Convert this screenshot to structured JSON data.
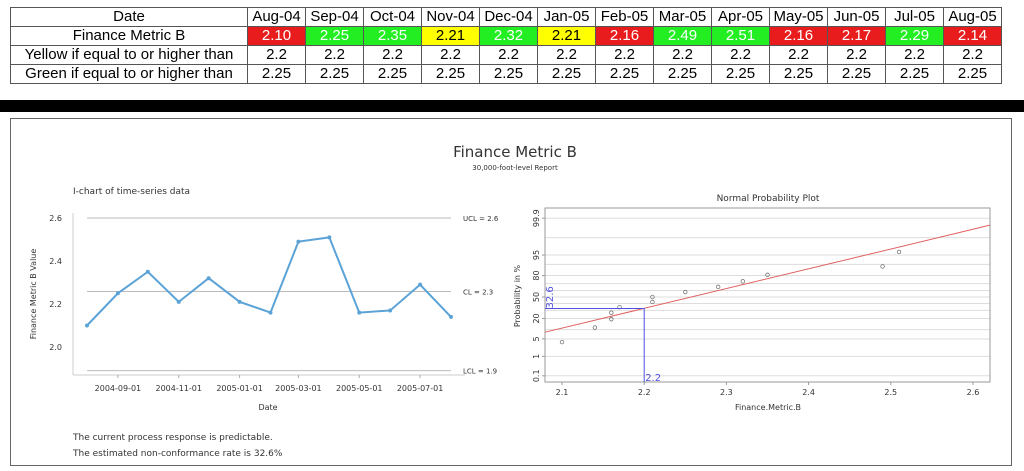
{
  "table": {
    "header_label": "Date",
    "months": [
      "Aug-04",
      "Sep-04",
      "Oct-04",
      "Nov-04",
      "Dec-04",
      "Jan-05",
      "Feb-05",
      "Mar-05",
      "Apr-05",
      "May-05",
      "Jun-05",
      "Jul-05",
      "Aug-05"
    ],
    "metric_label": "Finance Metric B",
    "metric_values": [
      "2.10",
      "2.25",
      "2.35",
      "2.21",
      "2.32",
      "2.21",
      "2.16",
      "2.49",
      "2.51",
      "2.16",
      "2.17",
      "2.29",
      "2.14"
    ],
    "yellow_label": "Yellow if equal to or higher than",
    "yellow_values": [
      "2.2",
      "2.2",
      "2.2",
      "2.2",
      "2.2",
      "2.2",
      "2.2",
      "2.2",
      "2.2",
      "2.2",
      "2.2",
      "2.2",
      "2.2"
    ],
    "green_label": "Green if equal to or higher than",
    "green_values": [
      "2.25",
      "2.25",
      "2.25",
      "2.25",
      "2.25",
      "2.25",
      "2.25",
      "2.25",
      "2.25",
      "2.25",
      "2.25",
      "2.25",
      "2.25"
    ],
    "colors": {
      "red": "#e81c1c",
      "yellow": "#ffff00",
      "green": "#22ee22"
    }
  },
  "report": {
    "title": "Finance Metric B",
    "subtitle": "30,000-foot-level Report",
    "footer": [
      "The current process response is predictable.",
      "The estimated non-conformance rate is 32.6%"
    ]
  },
  "chart_data": [
    {
      "type": "line",
      "title": "I-chart of time-series data",
      "xlabel": "Date",
      "ylabel": "Finance Metric B Value",
      "x": [
        "2004-08-01",
        "2004-09-01",
        "2004-10-01",
        "2004-11-01",
        "2004-12-01",
        "2005-01-01",
        "2005-02-01",
        "2005-03-01",
        "2005-04-01",
        "2005-05-01",
        "2005-06-01",
        "2005-07-01",
        "2005-08-01"
      ],
      "values": [
        2.1,
        2.25,
        2.35,
        2.21,
        2.32,
        2.21,
        2.16,
        2.49,
        2.51,
        2.16,
        2.17,
        2.29,
        2.14
      ],
      "xticks": [
        "2004-09-01",
        "2004-11-01",
        "2005-01-01",
        "2005-03-01",
        "2005-05-01",
        "2005-07-01"
      ],
      "yticks": [
        "2.0",
        "2.2",
        "2.4",
        "2.6"
      ],
      "ylim": [
        1.88,
        2.64
      ],
      "control_lines": [
        {
          "label": "UCL = 2.6",
          "value": 2.6
        },
        {
          "label": "CL = 2.3",
          "value": 2.258
        },
        {
          "label": "LCL = 1.9",
          "value": 1.89
        }
      ],
      "color": "#5ba3d6"
    },
    {
      "type": "scatter",
      "title": "Normal Probability Plot",
      "xlabel": "Finance.Metric.B",
      "ylabel": "Probability in %",
      "values": [
        2.1,
        2.14,
        2.16,
        2.16,
        2.17,
        2.21,
        2.21,
        2.25,
        2.29,
        2.32,
        2.35,
        2.49,
        2.51
      ],
      "xticks": [
        "2.1",
        "2.2",
        "2.3",
        "2.4",
        "2.5",
        "2.6"
      ],
      "xlim": [
        2.08,
        2.62
      ],
      "yticks": [
        "0.1",
        "1",
        "5",
        "20",
        "50",
        "80",
        "95",
        "99.9"
      ],
      "fit": {
        "mean": 2.258,
        "sd": 0.129,
        "color": "#e06060"
      },
      "reference": {
        "x": 2.2,
        "x_label": "2.2",
        "probability": 32.6,
        "y_label": "32.6",
        "color": "#5050e0"
      }
    }
  ]
}
